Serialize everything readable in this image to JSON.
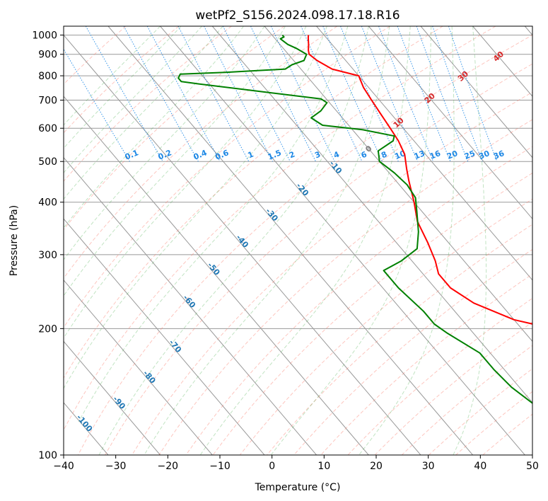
{
  "chart_data": {
    "type": "line",
    "title": "wetPf2_S156.2024.098.17.18.R16",
    "xlabel": "Temperature (°C)",
    "ylabel": "Pressure (hPa)",
    "xlim": [
      -40,
      50
    ],
    "ylim": [
      1050,
      100
    ],
    "y_scale": "log",
    "x_ticks": [
      -40,
      -30,
      -20,
      -10,
      0,
      10,
      20,
      30,
      40,
      50
    ],
    "y_ticks": [
      1000,
      900,
      800,
      700,
      600,
      500,
      400,
      300,
      200,
      100
    ],
    "grid": true,
    "legend": "none",
    "colors": {
      "temperature": "#ff0000",
      "dewpoint": "#008000",
      "isotherm": "#999999",
      "dry_adiabat": "#fa8072",
      "moist_adiabat": "#4caf50",
      "mixing_ratio": "#1e88e5",
      "isotherm_label": "#1f77b4",
      "dry_label": "#d62728",
      "zero_label": "#7f7f7f"
    },
    "series": [
      {
        "key": "temperature",
        "points": [
          [
            7,
            1000
          ],
          [
            6.5,
            985
          ],
          [
            5.5,
            950
          ],
          [
            4.5,
            920
          ],
          [
            4,
            900
          ],
          [
            4.5,
            870
          ],
          [
            6,
            830
          ],
          [
            10,
            800
          ],
          [
            9,
            750
          ],
          [
            8.5,
            700
          ],
          [
            8,
            650
          ],
          [
            7.5,
            600
          ],
          [
            7,
            560
          ],
          [
            6,
            520
          ],
          [
            4,
            480
          ],
          [
            2.5,
            450
          ],
          [
            0,
            400
          ],
          [
            -2.5,
            360
          ],
          [
            -4,
            320
          ],
          [
            -5.5,
            290
          ],
          [
            -7,
            270
          ],
          [
            -7,
            250
          ],
          [
            -5,
            230
          ],
          [
            0,
            210
          ],
          [
            6,
            200
          ],
          [
            11,
            185
          ],
          [
            13,
            170
          ],
          [
            16,
            155
          ],
          [
            21,
            140
          ],
          [
            24,
            125
          ],
          [
            26,
            115
          ],
          [
            30,
            105
          ],
          [
            32,
            100
          ]
        ]
      },
      {
        "key": "dewpoint",
        "points": [
          [
            2,
            1000
          ],
          [
            2,
            990
          ],
          [
            1,
            980
          ],
          [
            1.5,
            950
          ],
          [
            2.5,
            930
          ],
          [
            3.5,
            900
          ],
          [
            2,
            870
          ],
          [
            -1,
            850
          ],
          [
            -3,
            830
          ],
          [
            -15,
            815
          ],
          [
            -24,
            807
          ],
          [
            -25,
            790
          ],
          [
            -25,
            775
          ],
          [
            -22,
            765
          ],
          [
            -10,
            730
          ],
          [
            -1,
            705
          ],
          [
            -0.5,
            690
          ],
          [
            -3,
            660
          ],
          [
            -6,
            635
          ],
          [
            -5,
            610
          ],
          [
            2,
            595
          ],
          [
            7,
            575
          ],
          [
            6,
            560
          ],
          [
            1.5,
            530
          ],
          [
            0,
            500
          ],
          [
            1,
            470
          ],
          [
            1.5,
            440
          ],
          [
            1,
            410
          ],
          [
            -1,
            380
          ],
          [
            -4,
            340
          ],
          [
            -7,
            310
          ],
          [
            -12,
            290
          ],
          [
            -17,
            275
          ],
          [
            -17,
            250
          ],
          [
            -16,
            220
          ],
          [
            -16,
            205
          ],
          [
            -15,
            195
          ],
          [
            -12,
            175
          ],
          [
            -12,
            160
          ],
          [
            -11.5,
            145
          ],
          [
            -10,
            132
          ],
          [
            -5,
            120
          ],
          [
            -2,
            110
          ],
          [
            0,
            100
          ]
        ]
      }
    ],
    "isotherm_labels": [
      -100,
      -90,
      -80,
      -70,
      -60,
      -50,
      -40,
      -30,
      -20,
      -10
    ],
    "dry_adiabat_labels": [
      0,
      10,
      20,
      30,
      40
    ],
    "mixing_ratio_labels": [
      "0.1",
      "0.2",
      "0.4",
      "0.6",
      "1",
      "1.5",
      "2",
      "3",
      "4",
      "6",
      "8",
      "10",
      "13",
      "16",
      "20",
      "25",
      "30",
      "36"
    ],
    "mixing_ratio_values": [
      0.1,
      0.2,
      0.4,
      0.6,
      1,
      1.5,
      2,
      3,
      4,
      6,
      8,
      10,
      13,
      16,
      20,
      25,
      30,
      36
    ],
    "isotherm_label_pressures": [
      118,
      132,
      152,
      180,
      230,
      275,
      320,
      370,
      425,
      480
    ],
    "dry_adiabat_label_pressures": [
      530,
      612,
      700,
      790,
      880
    ],
    "mixing_ratio_label_pressure": 500
  }
}
